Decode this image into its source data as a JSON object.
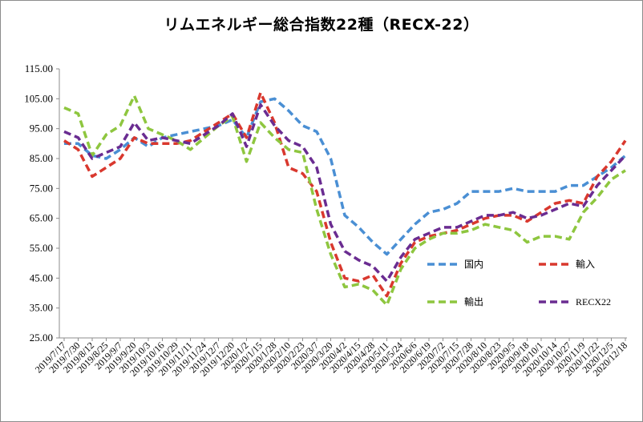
{
  "chart_data": {
    "type": "line",
    "title": "リムエネルギー総合指数22種（RECX-22）",
    "xlabel": "",
    "ylabel": "",
    "ylim": [
      25,
      115
    ],
    "yticks": [
      "115.00",
      "105.00",
      "95.00",
      "85.00",
      "75.00",
      "65.00",
      "55.00",
      "45.00",
      "35.00",
      "25.00"
    ],
    "grid": false,
    "legend_position": "inside-lower-right",
    "categories": [
      "2019/7/17",
      "2019/7/30",
      "2019/8/12",
      "2019/8/25",
      "2019/9/7",
      "2019/9/20",
      "2019/10/3",
      "2019/10/16",
      "2019/10/29",
      "2019/11/11",
      "2019/11/24",
      "2019/12/7",
      "2019/12/20",
      "2020/1/2",
      "2020/1/15",
      "2020/1/28",
      "2020/2/10",
      "2020/2/23",
      "2020/3/7",
      "2020/3/20",
      "2020/4/2",
      "2020/4/15",
      "2020/4/28",
      "2020/5/11",
      "2020/5/24",
      "2020/6/6",
      "2020/6/19",
      "2020/7/2",
      "2020/7/15",
      "2020/7/28",
      "2020/8/10",
      "2020/8/23",
      "2020/9/5",
      "2020/9/18",
      "2020/10/1",
      "2020/10/14",
      "2020/10/27",
      "2020/11/9",
      "2020/11/22",
      "2020/12/5",
      "2020/12/18"
    ],
    "series": [
      {
        "name": "国内",
        "color": "#4a8fd4",
        "values": [
          90,
          90,
          86,
          85,
          88,
          92,
          89,
          92,
          93,
          94,
          95,
          96,
          98,
          92,
          104,
          105,
          101,
          96,
          94,
          85,
          66,
          62,
          57,
          53,
          58,
          63,
          67,
          68,
          70,
          74,
          74,
          74,
          75,
          74,
          74,
          74,
          76,
          76,
          79,
          82,
          86
        ]
      },
      {
        "name": "輸入",
        "color": "#d9382e",
        "values": [
          91,
          88,
          79,
          82,
          85,
          92,
          90,
          90,
          90,
          91,
          94,
          97,
          100,
          92,
          107,
          97,
          82,
          80,
          74,
          57,
          45,
          44,
          46,
          39,
          50,
          57,
          59,
          60,
          61,
          63,
          65,
          66,
          66,
          64,
          67,
          70,
          71,
          70,
          79,
          84,
          91
        ]
      },
      {
        "name": "輸出",
        "color": "#8ec63f",
        "values": [
          102,
          100,
          86,
          93,
          96,
          106,
          95,
          93,
          91,
          88,
          92,
          96,
          99,
          84,
          97,
          92,
          88,
          87,
          68,
          53,
          42,
          43,
          41,
          36,
          48,
          55,
          58,
          60,
          60,
          61,
          63,
          62,
          61,
          57,
          59,
          59,
          58,
          67,
          72,
          78,
          81
        ]
      },
      {
        "name": "RECX22",
        "color": "#6a2c91",
        "values": [
          94,
          92,
          85,
          87,
          89,
          97,
          91,
          92,
          91,
          90,
          93,
          96,
          100,
          89,
          103,
          96,
          91,
          89,
          82,
          63,
          54,
          51,
          49,
          44,
          52,
          58,
          60,
          62,
          62,
          64,
          66,
          66,
          67,
          65,
          66,
          68,
          70,
          69,
          76,
          81,
          86
        ]
      }
    ]
  }
}
